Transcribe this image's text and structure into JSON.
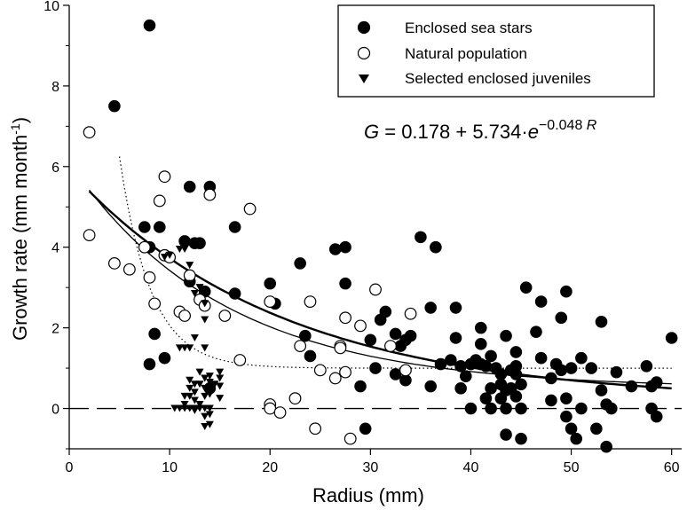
{
  "chart_data": {
    "type": "scatter",
    "xlabel": "Radius (mm)",
    "ylabel_main": "Growth rate (mm month",
    "ylabel_sup": "-1",
    "ylabel_end": ")",
    "xlim": [
      0,
      61
    ],
    "ylim": [
      -1,
      10
    ],
    "xticks": [
      0,
      10,
      20,
      30,
      40,
      50,
      60
    ],
    "yticks": [
      0,
      2,
      4,
      6,
      8,
      10
    ],
    "grid": false,
    "legend_position": "top-right",
    "equation": {
      "lhs": "G",
      "rhs_main": " = 0.178 + 5.734·",
      "e": "e",
      "exponent": "−0.048 ",
      "exp_var": "R"
    },
    "series": [
      {
        "name": "Enclosed sea stars",
        "marker": "filled-circle",
        "color": "#000000",
        "points": [
          [
            8,
            9.5
          ],
          [
            4.5,
            7.5
          ],
          [
            7.5,
            4.5
          ],
          [
            9,
            4.5
          ],
          [
            8,
            4
          ],
          [
            9.5,
            3.8
          ],
          [
            12,
            5.5
          ],
          [
            14,
            5.5
          ],
          [
            11.5,
            4.15
          ],
          [
            12.5,
            4.1
          ],
          [
            13,
            4.1
          ],
          [
            8.5,
            1.85
          ],
          [
            8,
            1.1
          ],
          [
            9.5,
            1.25
          ],
          [
            12,
            3.15
          ],
          [
            13.5,
            2.9
          ],
          [
            14,
            0.5
          ],
          [
            16.5,
            4.5
          ],
          [
            16.5,
            2.85
          ],
          [
            20,
            3.1
          ],
          [
            20.5,
            2.6
          ],
          [
            23,
            3.6
          ],
          [
            23.5,
            1.8
          ],
          [
            24,
            1.3
          ],
          [
            26.5,
            3.95
          ],
          [
            27.5,
            4.0
          ],
          [
            27.5,
            3.1
          ],
          [
            29,
            0.55
          ],
          [
            29.5,
            -0.5
          ],
          [
            30,
            1.7
          ],
          [
            30.5,
            1.0
          ],
          [
            31,
            2.2
          ],
          [
            31.5,
            2.4
          ],
          [
            32.5,
            1.85
          ],
          [
            32.5,
            0.85
          ],
          [
            33,
            1.55
          ],
          [
            33.5,
            1.7
          ],
          [
            33.5,
            0.7
          ],
          [
            34,
            1.8
          ],
          [
            35,
            4.25
          ],
          [
            36,
            2.5
          ],
          [
            36.5,
            4.0
          ],
          [
            36,
            0.55
          ],
          [
            37,
            1.1
          ],
          [
            38,
            1.2
          ],
          [
            38.5,
            2.5
          ],
          [
            38.5,
            1.75
          ],
          [
            39,
            1.05
          ],
          [
            39,
            0.5
          ],
          [
            39.5,
            0.8
          ],
          [
            40,
            1.1
          ],
          [
            40,
            0.0
          ],
          [
            40.5,
            1.2
          ],
          [
            41,
            2.0
          ],
          [
            41,
            1.6
          ],
          [
            41,
            1.1
          ],
          [
            41.5,
            1.05
          ],
          [
            41.5,
            0.25
          ],
          [
            42,
            0.5
          ],
          [
            42,
            1.3
          ],
          [
            42,
            0.0
          ],
          [
            42.5,
            1.0
          ],
          [
            43,
            0.85
          ],
          [
            43,
            0.6
          ],
          [
            43,
            0.25
          ],
          [
            43.5,
            1.8
          ],
          [
            43.5,
            0.45
          ],
          [
            43.5,
            0.0
          ],
          [
            43.5,
            -0.65
          ],
          [
            44,
            0.95
          ],
          [
            44,
            0.5
          ],
          [
            44.5,
            1.4
          ],
          [
            44.5,
            1.05
          ],
          [
            44.5,
            0.85
          ],
          [
            44.5,
            0.3
          ],
          [
            45,
            0.6
          ],
          [
            45,
            0.0
          ],
          [
            45,
            -0.75
          ],
          [
            45.5,
            3.0
          ],
          [
            46.5,
            1.9
          ],
          [
            47,
            2.65
          ],
          [
            47,
            1.25
          ],
          [
            48,
            0.75
          ],
          [
            48,
            0.2
          ],
          [
            48.5,
            1.1
          ],
          [
            49,
            2.25
          ],
          [
            49,
            0.95
          ],
          [
            49.5,
            2.9
          ],
          [
            49.5,
            0.25
          ],
          [
            49.5,
            -0.2
          ],
          [
            50,
            1.0
          ],
          [
            50,
            -0.5
          ],
          [
            50.5,
            -0.75
          ],
          [
            51,
            1.25
          ],
          [
            51,
            0.0
          ],
          [
            52,
            1.0
          ],
          [
            52.5,
            -0.5
          ],
          [
            53,
            2.15
          ],
          [
            53,
            0.45
          ],
          [
            53.5,
            0.1
          ],
          [
            53.5,
            -0.95
          ],
          [
            54,
            0.0
          ],
          [
            54.5,
            0.9
          ],
          [
            57.5,
            1.05
          ],
          [
            58,
            0.55
          ],
          [
            58,
            0.0
          ],
          [
            58.5,
            0.65
          ],
          [
            58.5,
            -0.2
          ],
          [
            60,
            1.75
          ],
          [
            56,
            0.55
          ]
        ]
      },
      {
        "name": "Natural population",
        "marker": "open-circle",
        "color": "#000000",
        "points": [
          [
            2,
            6.85
          ],
          [
            2,
            4.3
          ],
          [
            4.5,
            3.6
          ],
          [
            6,
            3.45
          ],
          [
            7.5,
            4.0
          ],
          [
            8,
            3.25
          ],
          [
            8.5,
            2.6
          ],
          [
            9,
            5.15
          ],
          [
            9.5,
            5.75
          ],
          [
            9.5,
            3.8
          ],
          [
            10,
            3.75
          ],
          [
            11,
            2.4
          ],
          [
            11.5,
            2.3
          ],
          [
            12,
            3.3
          ],
          [
            13,
            2.7
          ],
          [
            13.5,
            2.55
          ],
          [
            14,
            5.3
          ],
          [
            15.5,
            2.3
          ],
          [
            17,
            1.2
          ],
          [
            18,
            4.95
          ],
          [
            20,
            2.65
          ],
          [
            20,
            0.1
          ],
          [
            20,
            0.0
          ],
          [
            21,
            -0.1
          ],
          [
            22.5,
            0.25
          ],
          [
            23,
            1.55
          ],
          [
            24,
            2.65
          ],
          [
            24.5,
            -0.5
          ],
          [
            25,
            0.95
          ],
          [
            26.5,
            0.75
          ],
          [
            27,
            1.55
          ],
          [
            27,
            1.5
          ],
          [
            27.5,
            2.25
          ],
          [
            27.5,
            0.9
          ],
          [
            28,
            -0.75
          ],
          [
            29,
            2.05
          ],
          [
            30.5,
            2.95
          ],
          [
            32,
            1.55
          ],
          [
            34,
            2.35
          ],
          [
            33.5,
            0.95
          ]
        ]
      },
      {
        "name": "Selected enclosed juveniles",
        "marker": "filled-triangle-down",
        "color": "#000000",
        "points": [
          [
            9.5,
            3.75
          ],
          [
            10,
            3.8
          ],
          [
            11,
            3.95
          ],
          [
            11.5,
            3.95
          ],
          [
            12,
            3.55
          ],
          [
            12,
            3.1
          ],
          [
            12.5,
            2.85
          ],
          [
            13,
            3.0
          ],
          [
            13.5,
            2.6
          ],
          [
            13.5,
            2.2
          ],
          [
            11,
            1.5
          ],
          [
            11.5,
            1.5
          ],
          [
            12,
            1.5
          ],
          [
            12.5,
            1.75
          ],
          [
            13.5,
            1.5
          ],
          [
            11.5,
            0.3
          ],
          [
            12,
            0.7
          ],
          [
            12,
            0.5
          ],
          [
            12,
            0.3
          ],
          [
            12.5,
            0.6
          ],
          [
            12.5,
            0.4
          ],
          [
            12.5,
            0.2
          ],
          [
            13,
            0.9
          ],
          [
            13,
            0.6
          ],
          [
            13,
            0.1
          ],
          [
            13.5,
            0.75
          ],
          [
            13.5,
            0.5
          ],
          [
            13.5,
            0.3
          ],
          [
            14,
            0.8
          ],
          [
            14,
            0.65
          ],
          [
            14,
            0.35
          ],
          [
            14.5,
            0.6
          ],
          [
            15,
            0.75
          ],
          [
            15,
            0.55
          ],
          [
            10.5,
            0.0
          ],
          [
            11,
            0.0
          ],
          [
            11.5,
            0.0
          ],
          [
            12,
            0.0
          ],
          [
            12.5,
            0.0
          ],
          [
            13,
            0.0
          ],
          [
            13.5,
            0.0
          ],
          [
            13.5,
            -0.2
          ],
          [
            13.5,
            -0.45
          ],
          [
            14,
            0.0
          ],
          [
            14,
            -0.15
          ],
          [
            14,
            -0.4
          ],
          [
            11.5,
            0.1
          ],
          [
            12.5,
            -0.05
          ],
          [
            15,
            0.25
          ],
          [
            15,
            0.9
          ]
        ]
      }
    ],
    "curves": [
      {
        "style": "solid-thick",
        "model": "exp",
        "a": 0.178,
        "b": 5.734,
        "c": 0.048,
        "x_start": 2,
        "x_end": 60
      },
      {
        "style": "solid-thin",
        "model": "exp",
        "a": 0.5,
        "b": 5.6,
        "c": 0.065,
        "x_start": 2,
        "x_end": 60
      },
      {
        "style": "dotted",
        "model": "exp",
        "a": 1.0,
        "b": 26,
        "c": 0.32,
        "x_start": 5,
        "x_end": 60
      }
    ],
    "reference_lines": [
      {
        "style": "dashed",
        "y": 0
      }
    ]
  }
}
